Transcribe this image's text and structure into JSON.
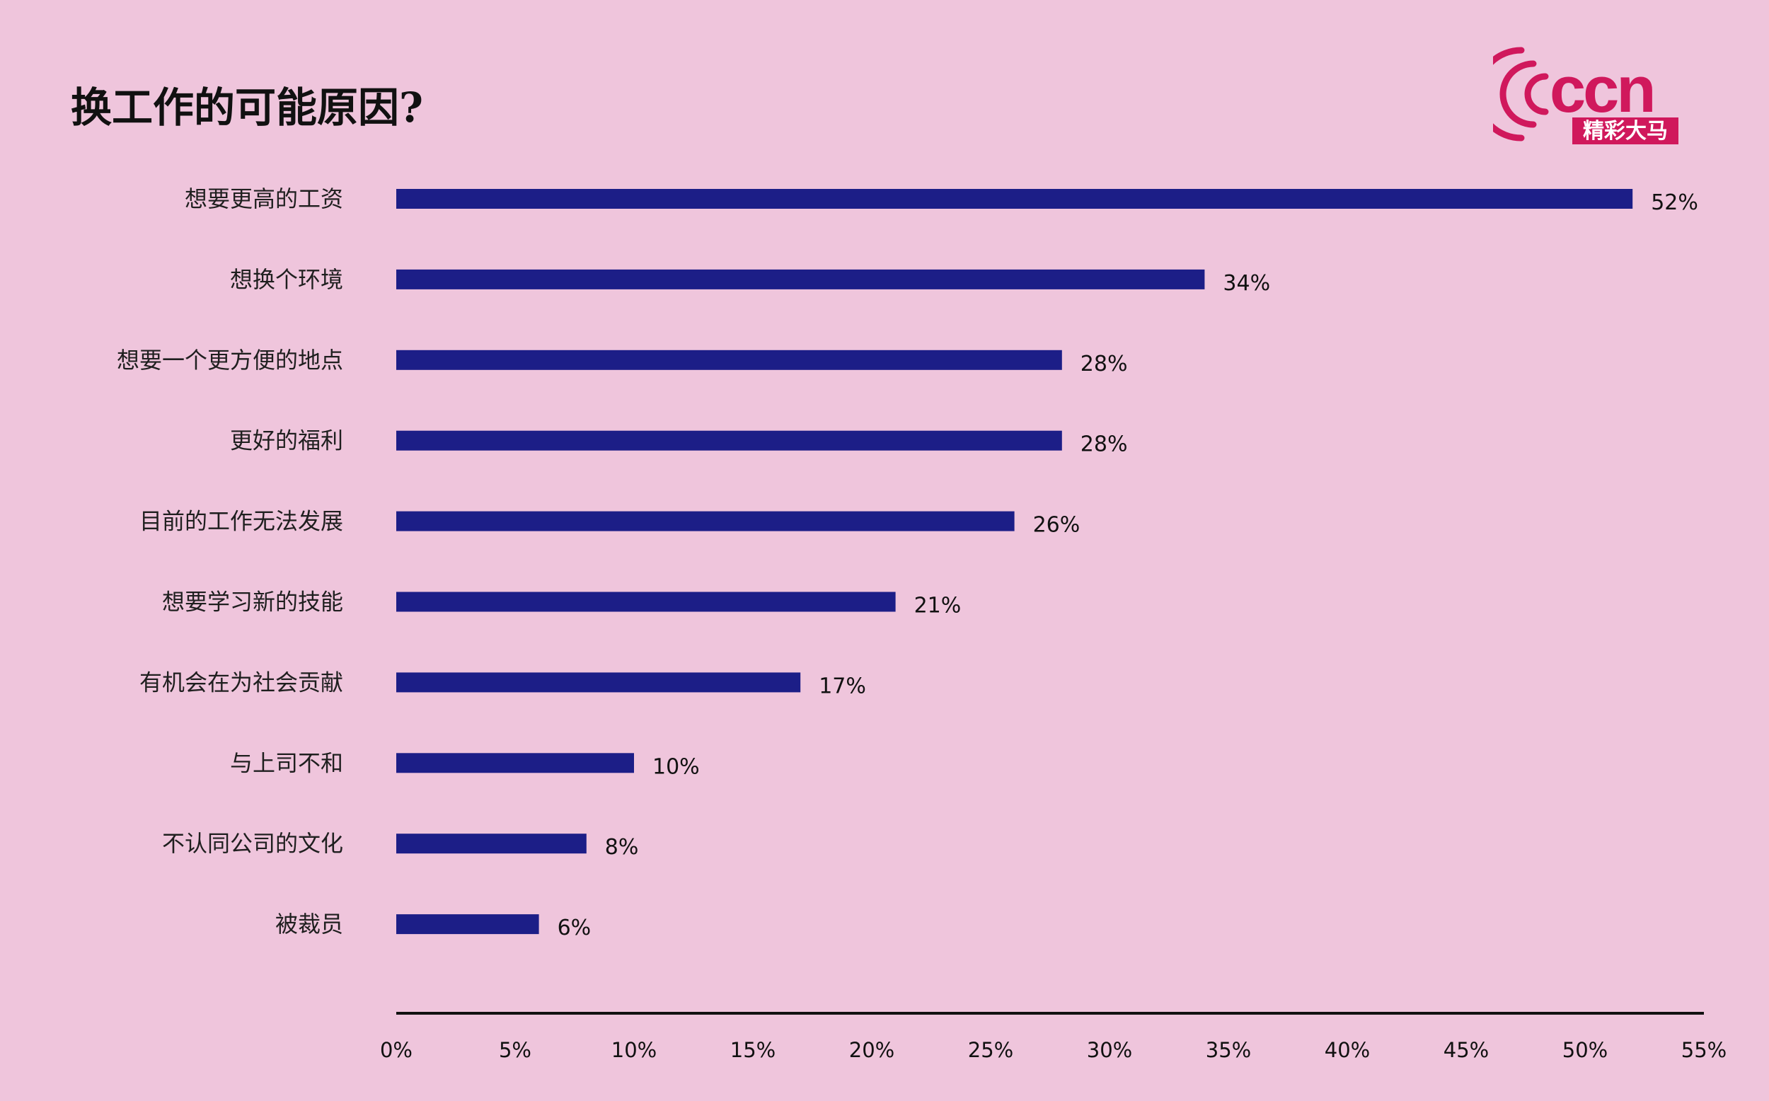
{
  "page": {
    "title": "换工作的可能原因?",
    "background": "#efc5dc"
  },
  "logo": {
    "text": "ccn",
    "subtext": "精彩大马",
    "color": "#d0185c"
  },
  "chart_data": {
    "type": "bar",
    "orientation": "horizontal",
    "title": "换工作的可能原因?",
    "xlabel": "",
    "ylabel": "",
    "categories": [
      "想要更高的工资",
      "想换个环境",
      "想要一个更方便的地点",
      "更好的福利",
      "目前的工作无法发展",
      "想要学习新的技能",
      "有机会在为社会贡献",
      "与上司不和",
      "不认同公司的文化",
      "被裁员"
    ],
    "values": [
      52,
      34,
      28,
      28,
      26,
      21,
      17,
      10,
      8,
      6
    ],
    "value_labels": [
      "52%",
      "34%",
      "28%",
      "28%",
      "26%",
      "21%",
      "17%",
      "10%",
      "8%",
      "6%"
    ],
    "xlim": [
      0,
      55
    ],
    "x_ticks": [
      0,
      5,
      10,
      15,
      20,
      25,
      30,
      35,
      40,
      45,
      50,
      55
    ],
    "x_tick_labels": [
      "0%",
      "5%",
      "10%",
      "15%",
      "20%",
      "25%",
      "30%",
      "35%",
      "40%",
      "45%",
      "50%",
      "55%"
    ],
    "bar_color": "#1c1e87",
    "axis_color": "#111111",
    "grid": false,
    "legend": "none"
  }
}
